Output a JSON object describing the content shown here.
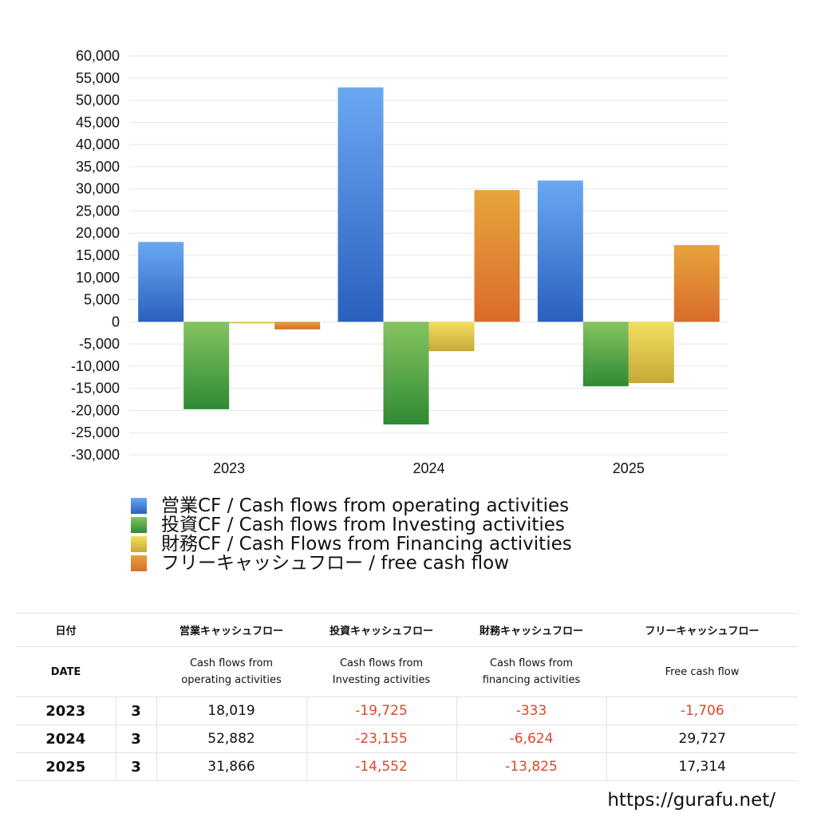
{
  "chart_data": {
    "type": "bar",
    "categories": [
      "2023",
      "2024",
      "2025"
    ],
    "ylim": [
      -30000,
      60000
    ],
    "yticks": [
      "60,000",
      "55,000",
      "50,000",
      "45,000",
      "40,000",
      "35,000",
      "30,000",
      "25,000",
      "20,000",
      "15,000",
      "10,000",
      "5,000",
      "0",
      "-5,000",
      "-10,000",
      "-15,000",
      "-20,000",
      "-25,000",
      "-30,000"
    ],
    "grid": true,
    "legend_position": "bottom",
    "series": [
      {
        "name": "営業CF / Cash flows from operating activities",
        "values": [
          18019,
          52882,
          31866
        ],
        "color_top": "#6aa8f2",
        "color_bottom": "#2a60bf"
      },
      {
        "name": "投資CF / Cash flows from Investing activities",
        "values": [
          -19725,
          -23155,
          -14552
        ],
        "color_top": "#85c45f",
        "color_bottom": "#2f8a34"
      },
      {
        "name": "財務CF / Cash Flows from Financing activities",
        "values": [
          -333,
          -6624,
          -13825
        ],
        "color_top": "#f3df5e",
        "color_bottom": "#c7a838"
      },
      {
        "name": "フリーキャッシュフロー / free cash flow",
        "values": [
          -1706,
          29727,
          17314
        ],
        "color_top": "#e7a43c",
        "color_bottom": "#d96b2a"
      }
    ]
  },
  "table": {
    "headers": [
      "日付",
      "",
      "営業キャッシュフロー",
      "投資キャッシュフロー",
      "財務キャッシュフロー",
      "フリーキャッシュフロー"
    ],
    "subheaders": [
      "DATE",
      "",
      "Cash flows from\noperating activities",
      "Cash flows from\nInvesting activities",
      "Cash flows from\nfinancing activities",
      "Free cash flow"
    ],
    "rows": [
      {
        "year": "2023",
        "month": "3",
        "operating": "18,019",
        "investing": "-19,725",
        "financing": "-333",
        "free": "-1,706"
      },
      {
        "year": "2024",
        "month": "3",
        "operating": "52,882",
        "investing": "-23,155",
        "financing": "-6,624",
        "free": "29,727"
      },
      {
        "year": "2025",
        "month": "3",
        "operating": "31,866",
        "investing": "-14,552",
        "financing": "-13,825",
        "free": "17,314"
      }
    ]
  },
  "footer": {
    "url": "https://gurafu.net/"
  },
  "colors": {
    "negative_text": "#d9482b",
    "grid": "#e6e6e6"
  }
}
